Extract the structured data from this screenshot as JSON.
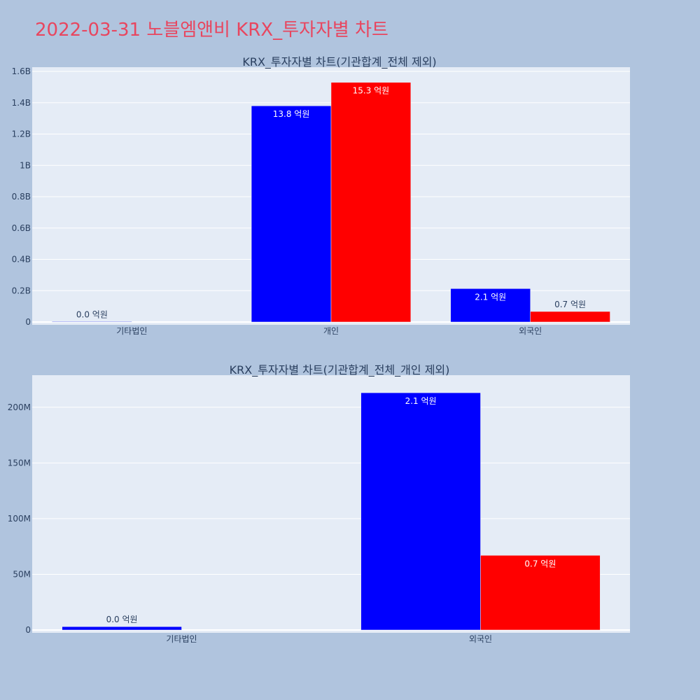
{
  "page": {
    "title": "2022-03-31 노블엠앤비 KRX_투자자별 차트",
    "background": "#b0c4de",
    "title_color": "#e8465f",
    "plot_background": "#e5ecf6",
    "grid_color": "#ffffff",
    "series_colors": [
      "#0000ff",
      "#ff0000"
    ]
  },
  "chart_data": [
    {
      "type": "bar",
      "title": "KRX_투자자별 차트(기관합계_전체 제외)",
      "categories": [
        "기타법인",
        "개인",
        "외국인"
      ],
      "series": [
        {
          "color": "#0000ff",
          "values": [
            3000000,
            1380000000,
            213000000
          ],
          "labels": [
            "0.0 억원",
            "13.8 억원",
            "2.1 억원"
          ]
        },
        {
          "color": "#ff0000",
          "values": [
            0,
            1530000000,
            67000000
          ],
          "labels": [
            "",
            "15.3 억원",
            "0.7 억원"
          ]
        }
      ],
      "ylim": [
        0,
        1600000000
      ],
      "yticks": [
        0,
        200000000,
        400000000,
        600000000,
        800000000,
        1000000000,
        1200000000,
        1400000000,
        1600000000
      ],
      "ytick_labels": [
        "0",
        "0.2B",
        "0.4B",
        "0.6B",
        "0.8B",
        "1B",
        "1.2B",
        "1.4B",
        "1.6B"
      ],
      "grid": true
    },
    {
      "type": "bar",
      "title": "KRX_투자자별 차트(기관합계_전체_개인 제외)",
      "categories": [
        "기타법인",
        "외국인"
      ],
      "series": [
        {
          "color": "#0000ff",
          "values": [
            3000000,
            213000000
          ],
          "labels": [
            "0.0 억원",
            "2.1 억원"
          ]
        },
        {
          "color": "#ff0000",
          "values": [
            0,
            67000000
          ],
          "labels": [
            "",
            "0.7 억원"
          ]
        }
      ],
      "ylim": [
        0,
        225000000
      ],
      "yticks": [
        0,
        50000000,
        100000000,
        150000000,
        200000000
      ],
      "ytick_labels": [
        "0",
        "50M",
        "100M",
        "150M",
        "200M"
      ],
      "grid": true
    }
  ]
}
